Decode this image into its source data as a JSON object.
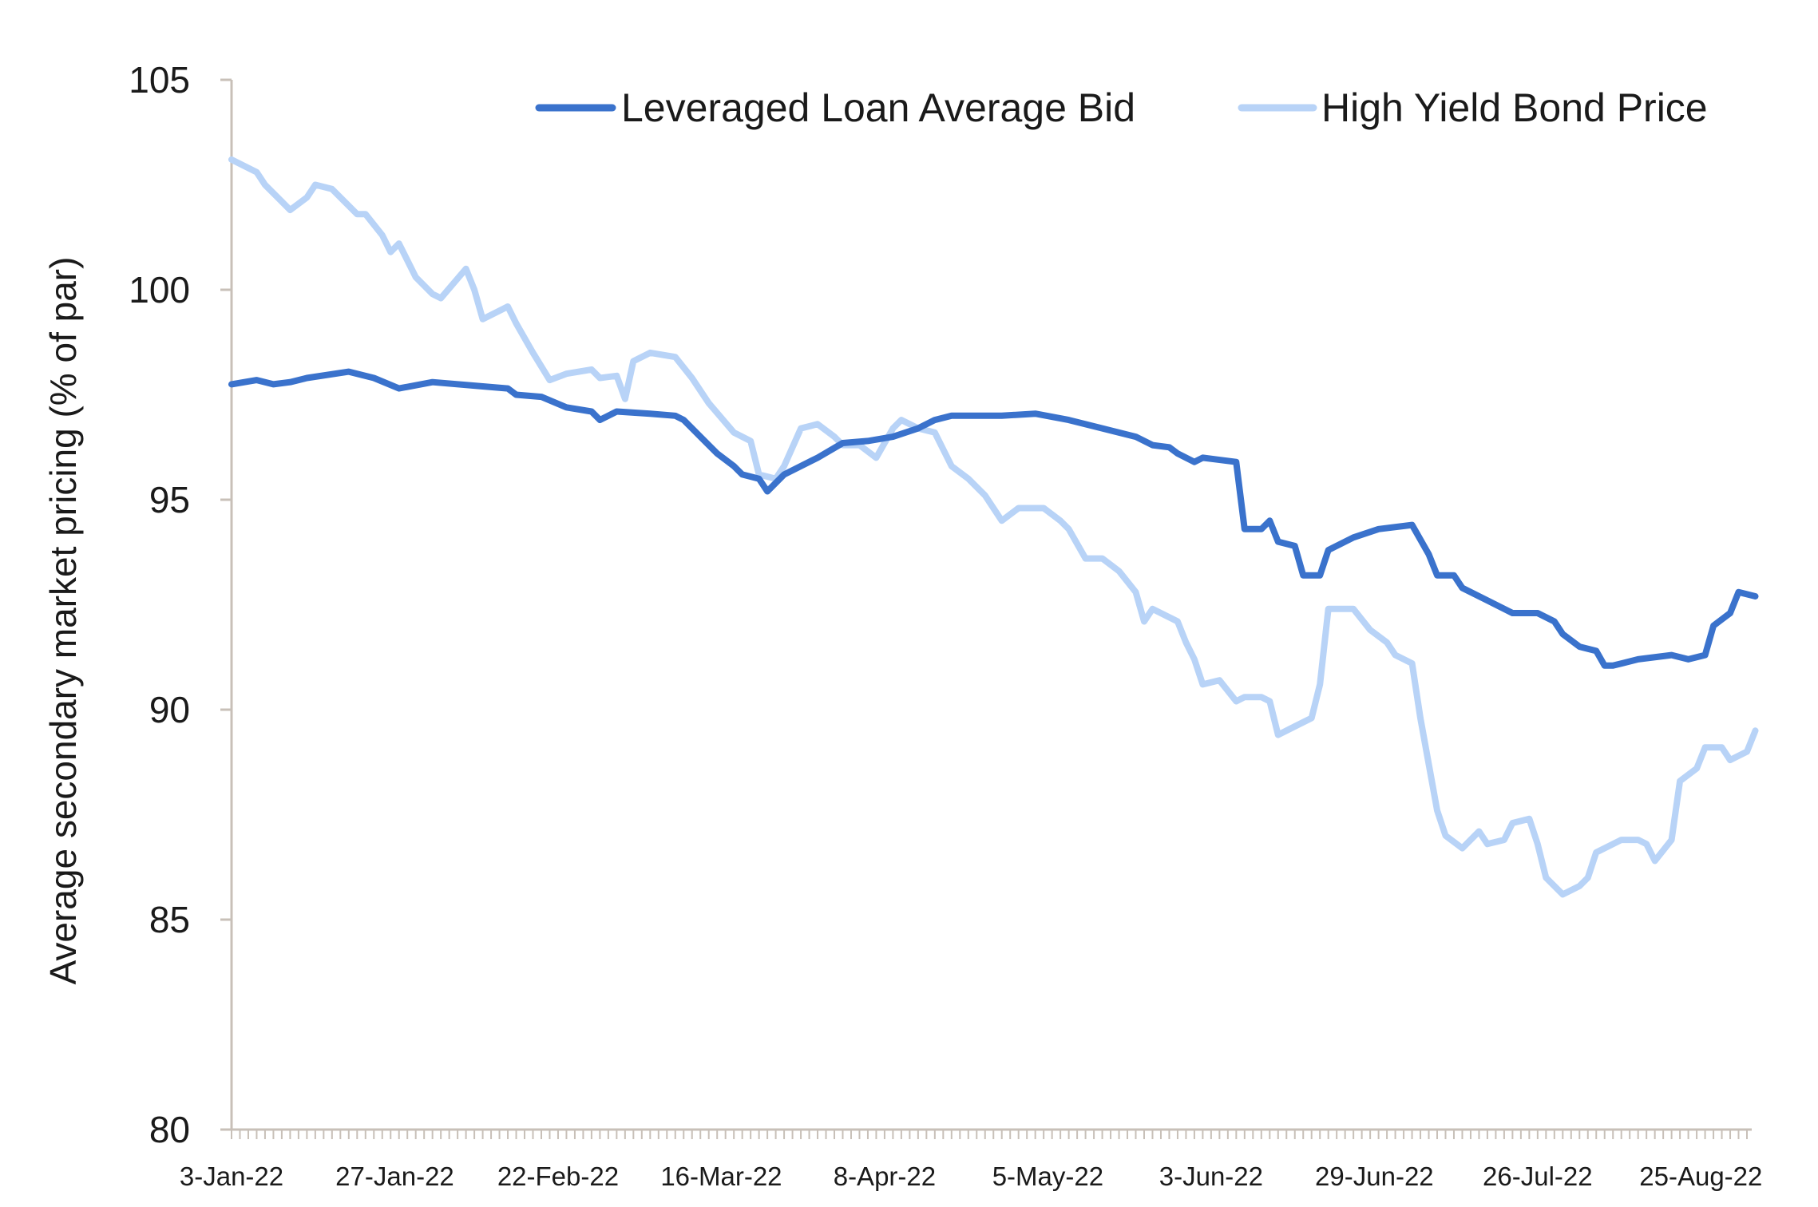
{
  "chart_data": {
    "type": "line",
    "title": "",
    "xlabel": "",
    "ylabel": "Average secondary market pricing (% of par)",
    "ylim": [
      80,
      105
    ],
    "yticks": [
      "80",
      "85",
      "90",
      "95",
      "100",
      "105"
    ],
    "xtick_labels": [
      "3-Jan-22",
      "27-Jan-22",
      "22-Feb-22",
      "16-Mar-22",
      "8-Apr-22",
      "5-May-22",
      "3-Jun-22",
      "29-Jun-22",
      "26-Jul-22",
      "25-Aug-22"
    ],
    "x_points": 182,
    "legend_position": "top-right",
    "grid": false,
    "series": [
      {
        "name": "Leveraged Loan Average Bid",
        "color": "#3a72cc",
        "keypoints": [
          [
            0,
            97.75
          ],
          [
            3,
            97.85
          ],
          [
            5,
            97.75
          ],
          [
            7,
            97.8
          ],
          [
            9,
            97.9
          ],
          [
            14,
            98.05
          ],
          [
            17,
            97.9
          ],
          [
            20,
            97.65
          ],
          [
            24,
            97.8
          ],
          [
            30,
            97.7
          ],
          [
            33,
            97.65
          ],
          [
            34,
            97.5
          ],
          [
            37,
            97.45
          ],
          [
            40,
            97.2
          ],
          [
            43,
            97.1
          ],
          [
            44,
            96.9
          ],
          [
            46,
            97.1
          ],
          [
            50,
            97.05
          ],
          [
            53,
            97.0
          ],
          [
            54,
            96.9
          ],
          [
            56,
            96.5
          ],
          [
            58,
            96.1
          ],
          [
            60,
            95.8
          ],
          [
            61,
            95.6
          ],
          [
            63,
            95.5
          ],
          [
            64,
            95.2
          ],
          [
            66,
            95.6
          ],
          [
            70,
            96.0
          ],
          [
            73,
            96.35
          ],
          [
            76,
            96.4
          ],
          [
            79,
            96.5
          ],
          [
            82,
            96.7
          ],
          [
            84,
            96.9
          ],
          [
            86,
            97.0
          ],
          [
            92,
            97.0
          ],
          [
            96,
            97.05
          ],
          [
            100,
            96.9
          ],
          [
            104,
            96.7
          ],
          [
            108,
            96.5
          ],
          [
            110,
            96.3
          ],
          [
            112,
            96.25
          ],
          [
            113,
            96.1
          ],
          [
            115,
            95.9
          ],
          [
            116,
            96.0
          ],
          [
            120,
            95.9
          ],
          [
            121,
            94.3
          ],
          [
            123,
            94.3
          ],
          [
            124,
            94.5
          ],
          [
            125,
            94.0
          ],
          [
            127,
            93.9
          ],
          [
            128,
            93.2
          ],
          [
            130,
            93.2
          ],
          [
            131,
            93.8
          ],
          [
            134,
            94.1
          ],
          [
            137,
            94.3
          ],
          [
            141,
            94.4
          ],
          [
            143,
            93.7
          ],
          [
            144,
            93.2
          ],
          [
            146,
            93.2
          ],
          [
            147,
            92.9
          ],
          [
            150,
            92.6
          ],
          [
            153,
            92.3
          ],
          [
            156,
            92.3
          ],
          [
            158,
            92.1
          ],
          [
            159,
            91.8
          ],
          [
            161,
            91.5
          ],
          [
            163,
            91.4
          ],
          [
            164,
            91.05
          ],
          [
            165,
            91.05
          ],
          [
            168,
            91.2
          ],
          [
            172,
            91.3
          ],
          [
            174,
            91.2
          ],
          [
            176,
            91.3
          ],
          [
            177,
            92.0
          ],
          [
            179,
            92.3
          ],
          [
            180,
            92.8
          ],
          [
            182,
            92.7
          ]
        ]
      },
      {
        "name": "High Yield Bond Price",
        "color": "#b8d3f7",
        "keypoints": [
          [
            0,
            103.1
          ],
          [
            3,
            102.8
          ],
          [
            4,
            102.5
          ],
          [
            6,
            102.1
          ],
          [
            7,
            101.9
          ],
          [
            9,
            102.2
          ],
          [
            10,
            102.5
          ],
          [
            12,
            102.4
          ],
          [
            13,
            102.2
          ],
          [
            15,
            101.8
          ],
          [
            16,
            101.8
          ],
          [
            18,
            101.3
          ],
          [
            19,
            100.9
          ],
          [
            20,
            101.1
          ],
          [
            22,
            100.3
          ],
          [
            24,
            99.9
          ],
          [
            25,
            99.8
          ],
          [
            28,
            100.5
          ],
          [
            29,
            100.0
          ],
          [
            30,
            99.3
          ],
          [
            33,
            99.6
          ],
          [
            34,
            99.2
          ],
          [
            36,
            98.5
          ],
          [
            38,
            97.85
          ],
          [
            40,
            98.0
          ],
          [
            43,
            98.1
          ],
          [
            44,
            97.9
          ],
          [
            46,
            97.95
          ],
          [
            47,
            97.4
          ],
          [
            48,
            98.3
          ],
          [
            50,
            98.5
          ],
          [
            53,
            98.4
          ],
          [
            55,
            97.9
          ],
          [
            57,
            97.3
          ],
          [
            60,
            96.6
          ],
          [
            62,
            96.4
          ],
          [
            63,
            95.6
          ],
          [
            65,
            95.5
          ],
          [
            66,
            95.8
          ],
          [
            68,
            96.7
          ],
          [
            70,
            96.8
          ],
          [
            72,
            96.5
          ],
          [
            73,
            96.3
          ],
          [
            75,
            96.3
          ],
          [
            77,
            96.0
          ],
          [
            79,
            96.7
          ],
          [
            80,
            96.9
          ],
          [
            82,
            96.7
          ],
          [
            84,
            96.6
          ],
          [
            86,
            95.8
          ],
          [
            88,
            95.5
          ],
          [
            90,
            95.1
          ],
          [
            92,
            94.5
          ],
          [
            94,
            94.8
          ],
          [
            97,
            94.8
          ],
          [
            99,
            94.5
          ],
          [
            100,
            94.3
          ],
          [
            102,
            93.6
          ],
          [
            104,
            93.6
          ],
          [
            106,
            93.3
          ],
          [
            108,
            92.8
          ],
          [
            109,
            92.1
          ],
          [
            110,
            92.4
          ],
          [
            113,
            92.1
          ],
          [
            114,
            91.6
          ],
          [
            115,
            91.2
          ],
          [
            116,
            90.6
          ],
          [
            118,
            90.7
          ],
          [
            120,
            90.2
          ],
          [
            121,
            90.3
          ],
          [
            123,
            90.3
          ],
          [
            124,
            90.2
          ],
          [
            125,
            89.4
          ],
          [
            127,
            89.6
          ],
          [
            129,
            89.8
          ],
          [
            130,
            90.6
          ],
          [
            131,
            92.4
          ],
          [
            133,
            92.4
          ],
          [
            134,
            92.4
          ],
          [
            136,
            91.9
          ],
          [
            138,
            91.6
          ],
          [
            139,
            91.3
          ],
          [
            141,
            91.1
          ],
          [
            142,
            89.8
          ],
          [
            144,
            87.6
          ],
          [
            145,
            87.0
          ],
          [
            147,
            86.7
          ],
          [
            149,
            87.1
          ],
          [
            150,
            86.8
          ],
          [
            152,
            86.9
          ],
          [
            153,
            87.3
          ],
          [
            155,
            87.4
          ],
          [
            156,
            86.8
          ],
          [
            157,
            86.0
          ],
          [
            159,
            85.6
          ],
          [
            161,
            85.8
          ],
          [
            162,
            86.0
          ],
          [
            163,
            86.6
          ],
          [
            165,
            86.8
          ],
          [
            166,
            86.9
          ],
          [
            168,
            86.9
          ],
          [
            169,
            86.8
          ],
          [
            170,
            86.4
          ],
          [
            172,
            86.9
          ],
          [
            173,
            88.3
          ],
          [
            175,
            88.6
          ],
          [
            176,
            89.1
          ],
          [
            178,
            89.1
          ],
          [
            179,
            88.8
          ],
          [
            181,
            89.0
          ],
          [
            182,
            89.5
          ]
        ]
      }
    ]
  }
}
